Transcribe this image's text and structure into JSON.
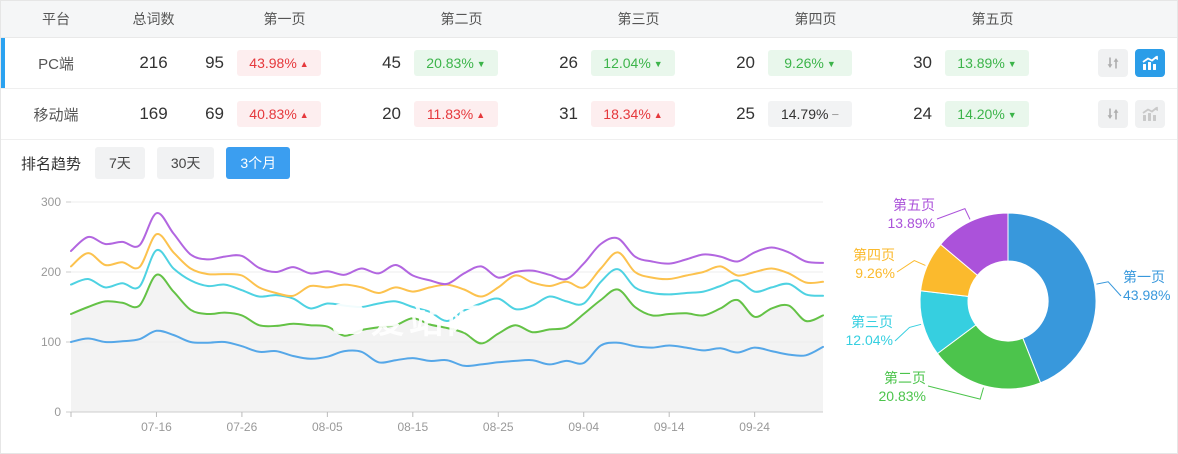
{
  "table": {
    "columns": [
      "平台",
      "总词数",
      "第一页",
      "第二页",
      "第三页",
      "第四页",
      "第五页"
    ],
    "rows": [
      {
        "platform": "PC端",
        "total": "216",
        "active": true,
        "chart_active": true,
        "pages": [
          {
            "count": "95",
            "pct": "43.98%",
            "dir": "up"
          },
          {
            "count": "45",
            "pct": "20.83%",
            "dir": "down"
          },
          {
            "count": "26",
            "pct": "12.04%",
            "dir": "down"
          },
          {
            "count": "20",
            "pct": "9.26%",
            "dir": "down"
          },
          {
            "count": "30",
            "pct": "13.89%",
            "dir": "down"
          }
        ]
      },
      {
        "platform": "移动端",
        "total": "169",
        "active": false,
        "chart_active": false,
        "pages": [
          {
            "count": "69",
            "pct": "40.83%",
            "dir": "up"
          },
          {
            "count": "20",
            "pct": "11.83%",
            "dir": "up"
          },
          {
            "count": "31",
            "pct": "18.34%",
            "dir": "up"
          },
          {
            "count": "25",
            "pct": "14.79%",
            "dir": "flat"
          },
          {
            "count": "24",
            "pct": "14.20%",
            "dir": "down"
          }
        ]
      }
    ]
  },
  "trend": {
    "title": "排名趋势",
    "tabs": [
      {
        "label": "7天",
        "active": false
      },
      {
        "label": "30天",
        "active": false
      },
      {
        "label": "3个月",
        "active": true
      }
    ]
  },
  "watermark": "爱站网",
  "colors": {
    "accent_blue": "#2ba2f0",
    "badge_up_text": "#e5383c",
    "badge_down_text": "#3cb44a",
    "line_blue": "#55a7e8",
    "line_green": "#64c246",
    "line_cyan": "#4ed2e2",
    "line_yellow": "#fcc24e",
    "line_purple": "#b266e0",
    "pie_blue": "#3898dc",
    "pie_green": "#4cc44c",
    "pie_cyan": "#36cfe0",
    "pie_yellow": "#fbba2d",
    "pie_purple": "#ab52da"
  },
  "chart_data": [
    {
      "type": "line",
      "title": "排名趋势 3个月",
      "x_start_date": "07-06",
      "x_step_days": 2,
      "x_tick_labels": [
        "07-16",
        "07-26",
        "08-05",
        "08-15",
        "08-25",
        "09-04",
        "09-14",
        "09-24"
      ],
      "x_tick_indices": [
        5,
        10,
        15,
        20,
        25,
        30,
        35,
        40
      ],
      "ylim": [
        0,
        300
      ],
      "yticks": [
        0,
        100,
        200,
        300
      ],
      "grid": true,
      "legend": "none",
      "series": [
        {
          "name": "line-blue-top1",
          "color": "#55a7e8",
          "area": false,
          "values": [
            100,
            105,
            100,
            101,
            104,
            116,
            110,
            100,
            99,
            100,
            94,
            86,
            87,
            80,
            76,
            79,
            87,
            86,
            71,
            74,
            77,
            73,
            74,
            66,
            68,
            71,
            73,
            74,
            68,
            73,
            70,
            95,
            99,
            94,
            92,
            95,
            92,
            88,
            91,
            85,
            92,
            87,
            82,
            81,
            93
          ]
        },
        {
          "name": "line-green-top2",
          "color": "#64c246",
          "area": true,
          "values": [
            140,
            150,
            158,
            156,
            152,
            196,
            172,
            146,
            140,
            142,
            138,
            124,
            123,
            126,
            124,
            122,
            109,
            117,
            121,
            124,
            134,
            125,
            120,
            113,
            98,
            112,
            124,
            114,
            118,
            121,
            140,
            160,
            175,
            150,
            138,
            140,
            141,
            138,
            148,
            160,
            136,
            148,
            152,
            130,
            138
          ]
        },
        {
          "name": "line-cyan-top3",
          "color": "#4ed2e2",
          "area": false,
          "values": [
            182,
            190,
            178,
            184,
            179,
            231,
            205,
            188,
            180,
            182,
            174,
            165,
            167,
            162,
            148,
            155,
            152,
            150,
            155,
            158,
            150,
            143,
            130,
            145,
            155,
            162,
            147,
            152,
            165,
            158,
            155,
            186,
            204,
            178,
            170,
            168,
            170,
            172,
            180,
            188,
            172,
            178,
            183,
            168,
            166
          ]
        },
        {
          "name": "line-yellow-top4",
          "color": "#fcc24e",
          "area": false,
          "values": [
            208,
            227,
            210,
            214,
            207,
            254,
            228,
            205,
            197,
            197,
            195,
            178,
            170,
            166,
            180,
            178,
            182,
            178,
            170,
            178,
            172,
            178,
            182,
            175,
            165,
            178,
            195,
            185,
            180,
            186,
            178,
            205,
            228,
            200,
            192,
            190,
            195,
            200,
            208,
            195,
            200,
            205,
            198,
            185,
            186
          ]
        },
        {
          "name": "line-purple-top5",
          "color": "#b266e0",
          "area": false,
          "values": [
            230,
            250,
            240,
            243,
            238,
            284,
            255,
            225,
            218,
            222,
            223,
            206,
            200,
            207,
            198,
            201,
            196,
            205,
            198,
            210,
            195,
            188,
            183,
            198,
            208,
            192,
            200,
            202,
            196,
            190,
            212,
            240,
            248,
            222,
            215,
            212,
            218,
            225,
            222,
            215,
            228,
            235,
            228,
            215,
            213
          ]
        }
      ]
    },
    {
      "type": "pie",
      "donut": true,
      "labels": [
        "第一页",
        "第二页",
        "第三页",
        "第四页",
        "第五页"
      ],
      "values": [
        43.98,
        20.83,
        12.04,
        9.26,
        13.89
      ],
      "value_labels": [
        "43.98%",
        "20.83%",
        "12.04%",
        "9.26%",
        "13.89%"
      ],
      "colors": [
        "#3898dc",
        "#4cc44c",
        "#36cfe0",
        "#fbba2d",
        "#ab52da"
      ],
      "start_angle_deg": -90,
      "direction": "clockwise"
    }
  ]
}
